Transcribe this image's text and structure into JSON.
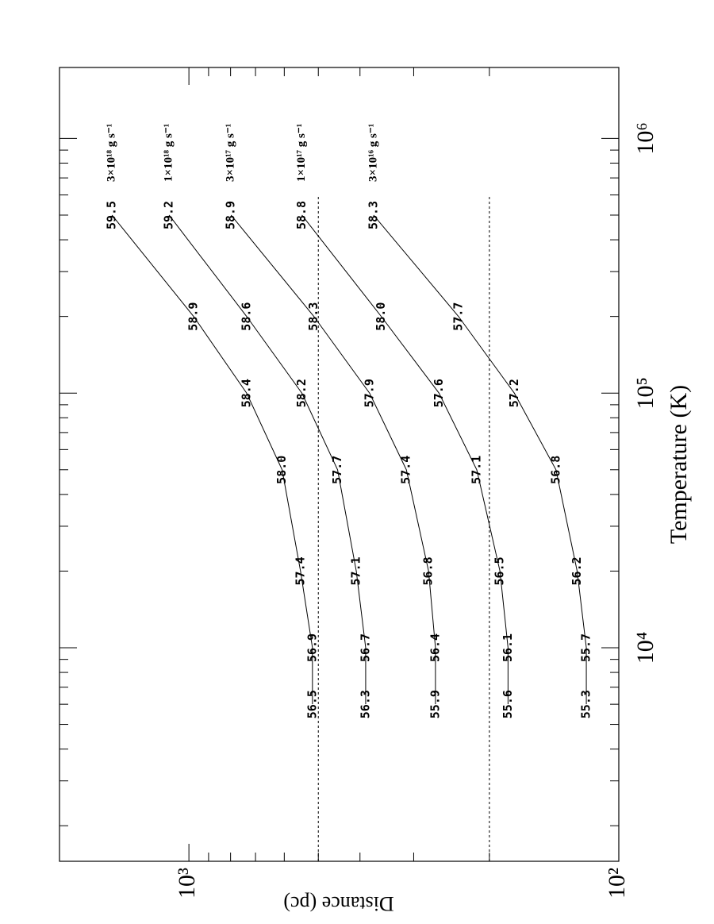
{
  "chart_data": {
    "type": "line",
    "x_label": "Temperature (K)",
    "y_label": "Distance (pc)",
    "xscale": "log",
    "yscale": "log",
    "xlim": [
      1450,
      1900000
    ],
    "ylim": [
      100,
      2000
    ],
    "xticks": [
      {
        "value": 10000,
        "label": "10⁴"
      },
      {
        "value": 100000,
        "label": "10⁵"
      },
      {
        "value": 1000000,
        "label": "10⁶"
      }
    ],
    "xminorticks": [
      2000,
      3000,
      4000,
      5000,
      6000,
      7000,
      8000,
      9000,
      20000,
      30000,
      40000,
      50000,
      60000,
      70000,
      80000,
      90000,
      200000,
      300000,
      400000,
      500000,
      600000,
      700000,
      800000,
      900000
    ],
    "yticks": [
      {
        "value": 100,
        "label": "10²"
      },
      {
        "value": 1000,
        "label": "10³"
      }
    ],
    "yminorticks": [
      200,
      300,
      400,
      500,
      600,
      700,
      800,
      900
    ],
    "x": [
      6000,
      10000,
      20000,
      50000,
      100000,
      200000,
      500000
    ],
    "series": [
      {
        "name": "3×10¹⁸ g s⁻¹",
        "color": "#000000",
        "values": [
          516,
          516,
          550,
          607,
          734,
          975,
          1510
        ],
        "point_labels": [
          "56.5",
          "56.9",
          "57.4",
          "58.0",
          "58.4",
          "58.9",
          "59.5"
        ]
      },
      {
        "name": "1×10¹⁸ g s⁻¹",
        "color": "#000000",
        "values": [
          388,
          388,
          408,
          451,
          546,
          734,
          1112
        ],
        "point_labels": [
          "56.3",
          "56.7",
          "57.1",
          "57.7",
          "58.2",
          "58.6",
          "59.2"
        ]
      },
      {
        "name": "3×10¹⁷ g s⁻¹",
        "color": "#000000",
        "values": [
          267,
          267,
          277,
          312,
          380,
          512,
          798
        ],
        "point_labels": [
          "55.9",
          "56.4",
          "56.8",
          "57.4",
          "57.9",
          "58.3",
          "58.9"
        ]
      },
      {
        "name": "1×10¹⁷ g s⁻¹",
        "color": "#000000",
        "values": [
          181,
          181,
          189,
          214,
          262,
          357,
          546
        ],
        "point_labels": [
          "55.6",
          "56.1",
          "56.5",
          "57.1",
          "57.6",
          "58.0",
          "58.8"
        ]
      },
      {
        "name": "3×10¹⁶ g s⁻¹",
        "color": "#000000",
        "values": [
          119,
          119,
          125,
          140,
          175,
          236,
          372
        ],
        "point_labels": [
          "55.3",
          "55.7",
          "56.2",
          "56.8",
          "57.2",
          "57.7",
          "58.3"
        ]
      }
    ],
    "hlines": [
      {
        "value": 500,
        "xmax": 600000
      },
      {
        "value": 200,
        "xmax": 600000
      }
    ]
  }
}
